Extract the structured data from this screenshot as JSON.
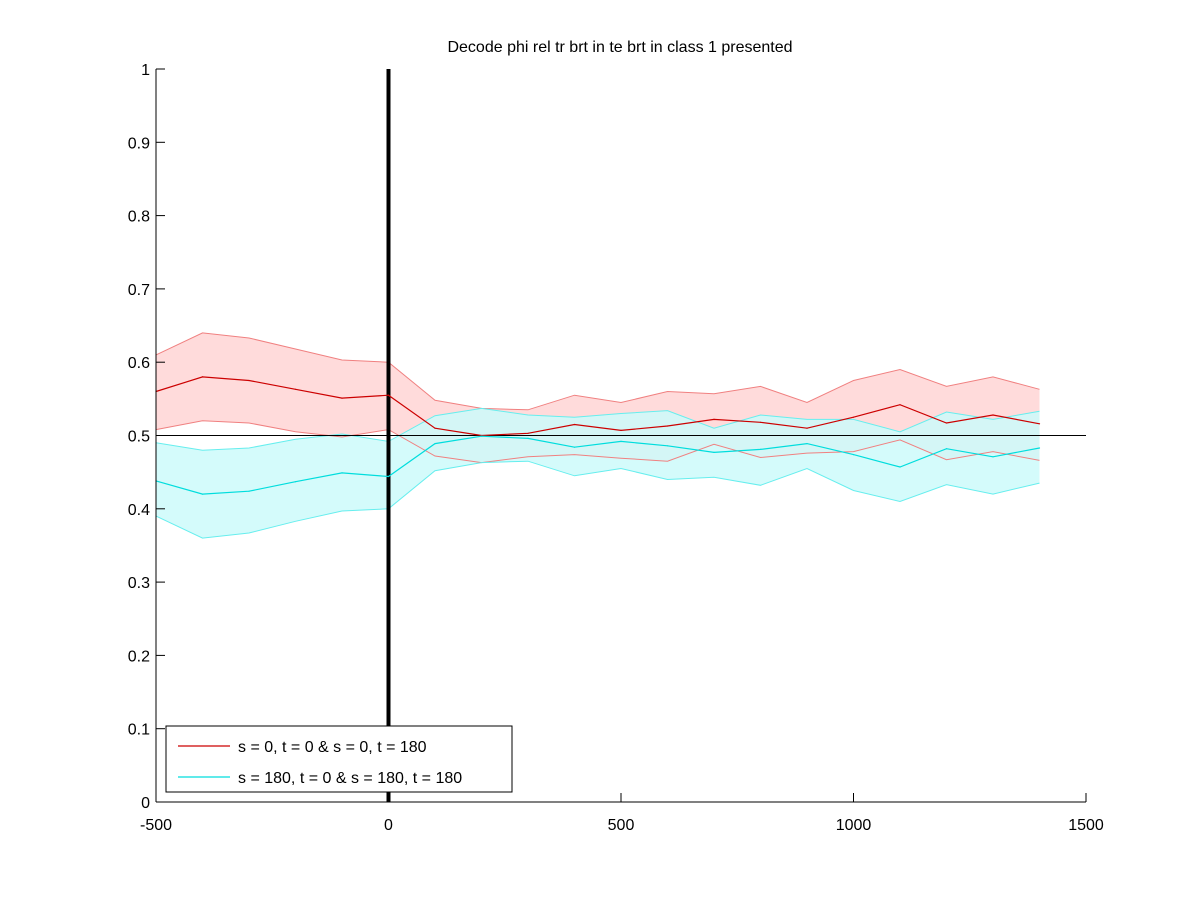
{
  "chart_data": {
    "type": "line",
    "title": "Decode phi rel tr brt in te brt in  class 1 presented",
    "xlabel": "",
    "ylabel": "",
    "xlim": [
      -500,
      1500
    ],
    "ylim": [
      0,
      1
    ],
    "xticks": [
      -500,
      0,
      500,
      1000,
      1500
    ],
    "xtick_labels": [
      "-500",
      "0",
      "500",
      "1000",
      "1500"
    ],
    "yticks": [
      0,
      0.1,
      0.2,
      0.3,
      0.4,
      0.5,
      0.6,
      0.7,
      0.8,
      0.9,
      1
    ],
    "ytick_labels": [
      "0",
      "0.1",
      "0.2",
      "0.3",
      "0.4",
      "0.5",
      "0.6",
      "0.7",
      "0.8",
      "0.9",
      "1"
    ],
    "grid": false,
    "legend_position": "bottom-left",
    "x": [
      -500,
      -400,
      -300,
      -200,
      -100,
      0,
      100,
      200,
      300,
      400,
      500,
      600,
      700,
      800,
      900,
      1000,
      1100,
      1200,
      1300,
      1400
    ],
    "series": [
      {
        "name": "s = 0, t = 0 & s = 0, t = 180",
        "color": "#cc0000",
        "band_color": "#ffd5d5",
        "band_edge_color": "#f08080",
        "values": [
          0.56,
          0.58,
          0.575,
          0.563,
          0.551,
          0.555,
          0.51,
          0.5,
          0.503,
          0.515,
          0.507,
          0.513,
          0.522,
          0.518,
          0.51,
          0.525,
          0.542,
          0.517,
          0.528,
          0.516
        ],
        "upper": [
          0.61,
          0.64,
          0.633,
          0.618,
          0.603,
          0.6,
          0.548,
          0.537,
          0.535,
          0.555,
          0.545,
          0.56,
          0.557,
          0.567,
          0.545,
          0.575,
          0.59,
          0.567,
          0.58,
          0.563
        ],
        "lower": [
          0.508,
          0.52,
          0.517,
          0.505,
          0.498,
          0.508,
          0.472,
          0.463,
          0.471,
          0.474,
          0.469,
          0.465,
          0.488,
          0.47,
          0.476,
          0.478,
          0.494,
          0.467,
          0.478,
          0.466
        ]
      },
      {
        "name": "s = 180, t = 0 & s = 180, t = 180",
        "color": "#00dddd",
        "band_color": "#ccfafa",
        "band_edge_color": "#66eeee",
        "values": [
          0.438,
          0.42,
          0.424,
          0.437,
          0.449,
          0.444,
          0.489,
          0.499,
          0.496,
          0.484,
          0.492,
          0.486,
          0.477,
          0.481,
          0.489,
          0.474,
          0.457,
          0.482,
          0.471,
          0.483
        ],
        "upper": [
          0.49,
          0.48,
          0.483,
          0.495,
          0.502,
          0.492,
          0.527,
          0.537,
          0.528,
          0.525,
          0.53,
          0.534,
          0.51,
          0.528,
          0.522,
          0.522,
          0.505,
          0.532,
          0.522,
          0.533
        ],
        "lower": [
          0.39,
          0.36,
          0.367,
          0.383,
          0.397,
          0.4,
          0.452,
          0.463,
          0.465,
          0.445,
          0.455,
          0.44,
          0.443,
          0.432,
          0.455,
          0.425,
          0.41,
          0.433,
          0.42,
          0.435
        ]
      }
    ],
    "reference_lines": [
      {
        "orientation": "horizontal",
        "value": 0.5,
        "color": "#000000"
      },
      {
        "orientation": "vertical",
        "value": 0,
        "color": "#000000"
      }
    ]
  }
}
